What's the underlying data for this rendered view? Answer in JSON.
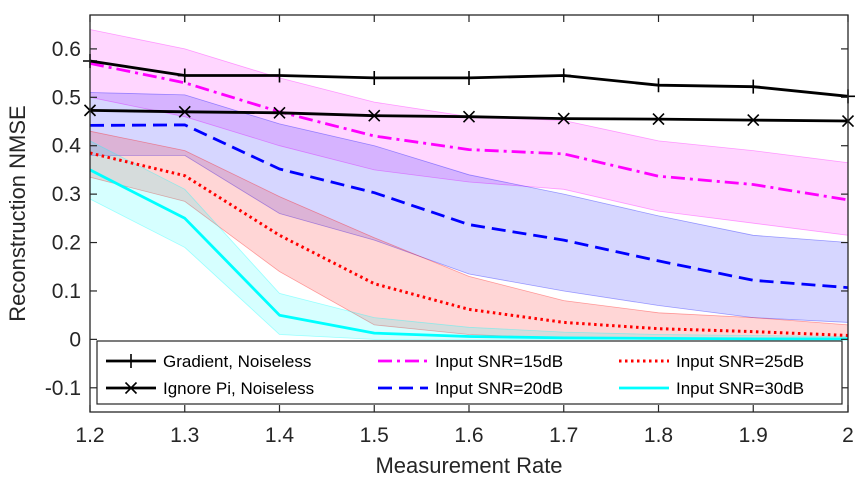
{
  "chart_data": {
    "type": "line",
    "title": "",
    "xlabel": "Measurement Rate",
    "ylabel": "Reconstruction NMSE",
    "xlim": [
      1.2,
      2.0
    ],
    "ylim": [
      -0.15,
      0.67
    ],
    "x_ticks": [
      "1.2",
      "1.3",
      "1.4",
      "1.5",
      "1.6",
      "1.7",
      "1.8",
      "1.9",
      "2"
    ],
    "y_ticks": [
      "-0.1",
      "0",
      "0.1",
      "0.2",
      "0.3",
      "0.4",
      "0.5",
      "0.6"
    ],
    "x": [
      1.2,
      1.3,
      1.4,
      1.5,
      1.6,
      1.7,
      1.8,
      1.9,
      2.0
    ],
    "legend_position": "bottom",
    "grid": false,
    "series": [
      {
        "name": "Gradient, Noiseless",
        "color": "#000000",
        "style": "solid",
        "marker": "plus",
        "values": [
          0.575,
          0.545,
          0.545,
          0.54,
          0.54,
          0.545,
          0.525,
          0.522,
          0.502
        ]
      },
      {
        "name": "Ignore Pi, Noiseless",
        "color": "#000000",
        "style": "solid",
        "marker": "x",
        "values": [
          0.473,
          0.47,
          0.468,
          0.462,
          0.46,
          0.456,
          0.455,
          0.453,
          0.451
        ]
      },
      {
        "name": "Input SNR=15dB",
        "color": "#ff00ff",
        "style": "dashdot",
        "marker": "none",
        "values": [
          0.57,
          0.53,
          0.47,
          0.42,
          0.392,
          0.383,
          0.337,
          0.32,
          0.288
        ],
        "band_upper": [
          0.64,
          0.6,
          0.54,
          0.49,
          0.46,
          0.452,
          0.41,
          0.39,
          0.365
        ],
        "band_lower": [
          0.5,
          0.46,
          0.4,
          0.35,
          0.325,
          0.31,
          0.265,
          0.24,
          0.215
        ]
      },
      {
        "name": "Input SNR=20dB",
        "color": "#0000ff",
        "style": "dashed",
        "marker": "none",
        "values": [
          0.442,
          0.443,
          0.352,
          0.303,
          0.237,
          0.205,
          0.162,
          0.122,
          0.107
        ],
        "band_upper": [
          0.51,
          0.505,
          0.445,
          0.4,
          0.34,
          0.3,
          0.255,
          0.215,
          0.2
        ],
        "band_lower": [
          0.38,
          0.38,
          0.26,
          0.205,
          0.135,
          0.1,
          0.07,
          0.045,
          0.035
        ]
      },
      {
        "name": "Input SNR=25dB",
        "color": "#ff0000",
        "style": "dotted",
        "marker": "none",
        "values": [
          0.385,
          0.338,
          0.215,
          0.115,
          0.062,
          0.035,
          0.022,
          0.016,
          0.008
        ],
        "band_upper": [
          0.43,
          0.39,
          0.295,
          0.21,
          0.13,
          0.08,
          0.055,
          0.045,
          0.03
        ],
        "band_lower": [
          0.335,
          0.285,
          0.14,
          0.03,
          0.01,
          0.002,
          0.0,
          0.0,
          0.0
        ]
      },
      {
        "name": "Input SNR=30dB",
        "color": "#00ffff",
        "style": "solid",
        "marker": "none",
        "values": [
          0.35,
          0.25,
          0.05,
          0.013,
          0.006,
          0.003,
          0.002,
          0.001,
          0.001
        ],
        "band_upper": [
          0.41,
          0.31,
          0.095,
          0.045,
          0.025,
          0.015,
          0.01,
          0.008,
          0.006
        ],
        "band_lower": [
          0.29,
          0.19,
          0.01,
          0.0,
          0.0,
          0.0,
          0.0,
          0.0,
          0.0
        ]
      }
    ]
  }
}
